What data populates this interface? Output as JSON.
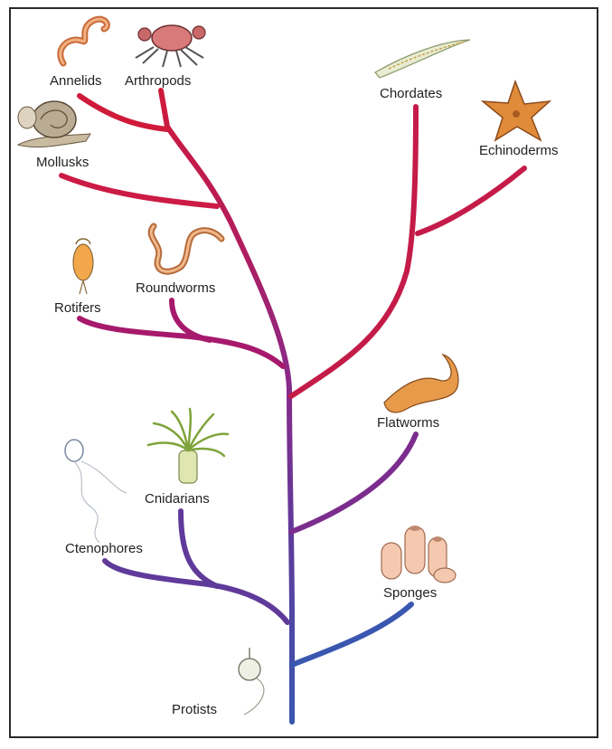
{
  "labels": {
    "annelids": "Annelids",
    "arthropods": "Arthropods",
    "mollusks": "Mollusks",
    "chordates": "Chordates",
    "echinoderms": "Echinoderms",
    "rotifers": "Rotifers",
    "roundworms": "Roundworms",
    "flatworms": "Flatworms",
    "cnidarians": "Cnidarians",
    "ctenophores": "Ctenophores",
    "sponges": "Sponges",
    "protists": "Protists"
  },
  "colors": {
    "red": "#d01a3a",
    "crimson": "#c41b48",
    "magenta": "#a6196c",
    "purple": "#7b2d8e",
    "violet": "#5f3a9a",
    "blue": "#3a57b0"
  }
}
